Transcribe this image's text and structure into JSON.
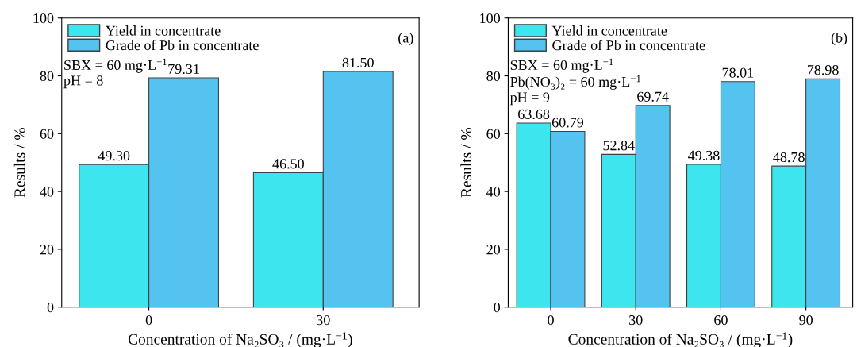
{
  "chart_data": [
    {
      "type": "bar",
      "categories": [
        "0",
        "30"
      ],
      "xlabel": "Concentration of Na₂SO₃ / (mg·L$^{−1}$)",
      "ylabel": "Results / %",
      "ylim": [
        0,
        100
      ],
      "yticks": [
        0,
        20,
        40,
        60,
        80,
        100
      ],
      "grid": false,
      "legend": "top left",
      "series": [
        {
          "name": "Yield in concentrate",
          "color": "#3de6ee",
          "values": [
            49.3,
            46.5
          ],
          "value_labels": [
            "49.30",
            "46.50"
          ]
        },
        {
          "name": "Grade of Pb in concentrate",
          "color": "#55c3ef",
          "values": [
            79.31,
            81.5
          ],
          "value_labels": [
            "79.31",
            "81.50"
          ]
        }
      ],
      "annotations": [
        "(a)",
        "SBX = 60 mg·L$^{−1}$",
        "pH = 8"
      ]
    },
    {
      "type": "bar",
      "categories": [
        "0",
        "30",
        "60",
        "90"
      ],
      "xlabel": "Concentration of Na₂SO₃ / (mg·L$^{−1}$)",
      "ylabel": "Results / %",
      "ylim": [
        0,
        100
      ],
      "yticks": [
        0,
        20,
        40,
        60,
        80,
        100
      ],
      "grid": false,
      "legend": "top left",
      "series": [
        {
          "name": "Yield in concentrate",
          "color": "#3de6ee",
          "values": [
            63.68,
            52.84,
            49.38,
            48.78
          ],
          "value_labels": [
            "63.68",
            "52.84",
            "49.38",
            "48.78"
          ]
        },
        {
          "name": "Grade of Pb in concentrate",
          "color": "#55c3ef",
          "values": [
            60.79,
            69.74,
            78.01,
            78.98
          ],
          "value_labels": [
            "60.79",
            "69.74",
            "78.01",
            "78.98"
          ]
        }
      ],
      "annotations": [
        "(b)",
        "SBX = 60 mg·L$^{−1}$",
        "Pb(NO₃)₂ = 60 mg·L$^{−1}$",
        "pH = 9"
      ]
    }
  ]
}
